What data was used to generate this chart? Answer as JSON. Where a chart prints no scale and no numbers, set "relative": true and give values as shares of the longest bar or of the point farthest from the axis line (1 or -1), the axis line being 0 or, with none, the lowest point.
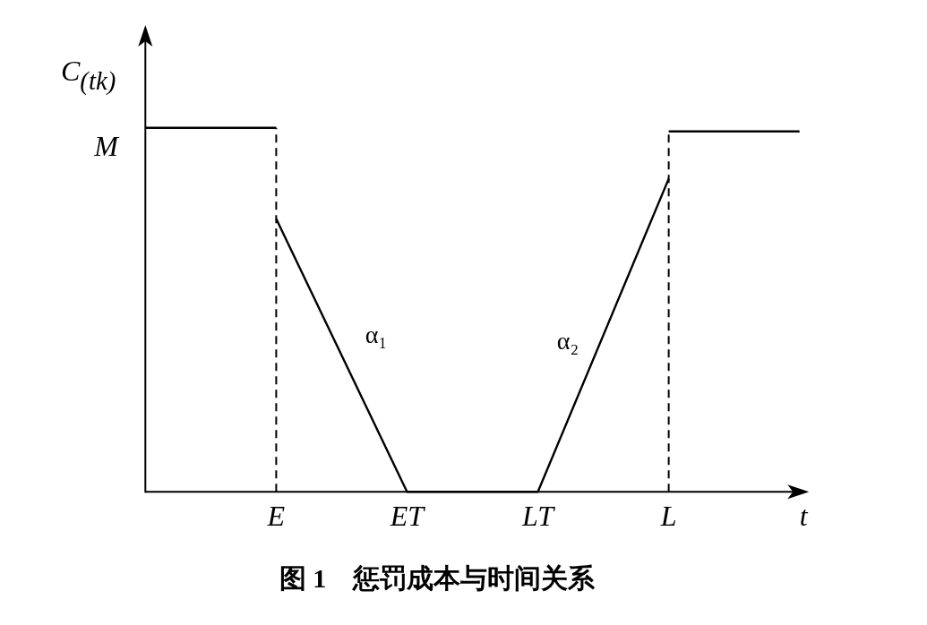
{
  "chart_data": {
    "type": "line",
    "relative": true,
    "title": "图 1　惩罚成本与时间关系",
    "xlabel": "t",
    "ylabel": "C$_{(tk)}$",
    "categories": [
      null,
      "E",
      "ET",
      "LT",
      "L",
      null
    ],
    "series": [
      {
        "color": "#000000",
        "line_style": "solid",
        "values": [
          1,
          1,
          null,
          null,
          null,
          null
        ]
      },
      {
        "color": "#000000",
        "line_style": "solid",
        "values": [
          null,
          0.75,
          0,
          0,
          0.86,
          null
        ]
      },
      {
        "color": "#000000",
        "line_style": "solid",
        "values": [
          null,
          null,
          null,
          null,
          0.99,
          0.99
        ]
      }
    ],
    "ref_lines": [
      {
        "axis": "x",
        "value": "E",
        "color": "#000000",
        "line_style": "dashed"
      },
      {
        "axis": "x",
        "value": "L",
        "color": "#000000",
        "line_style": "dashed"
      }
    ],
    "annotations": [
      "M",
      "α₁",
      "α₂"
    ]
  }
}
